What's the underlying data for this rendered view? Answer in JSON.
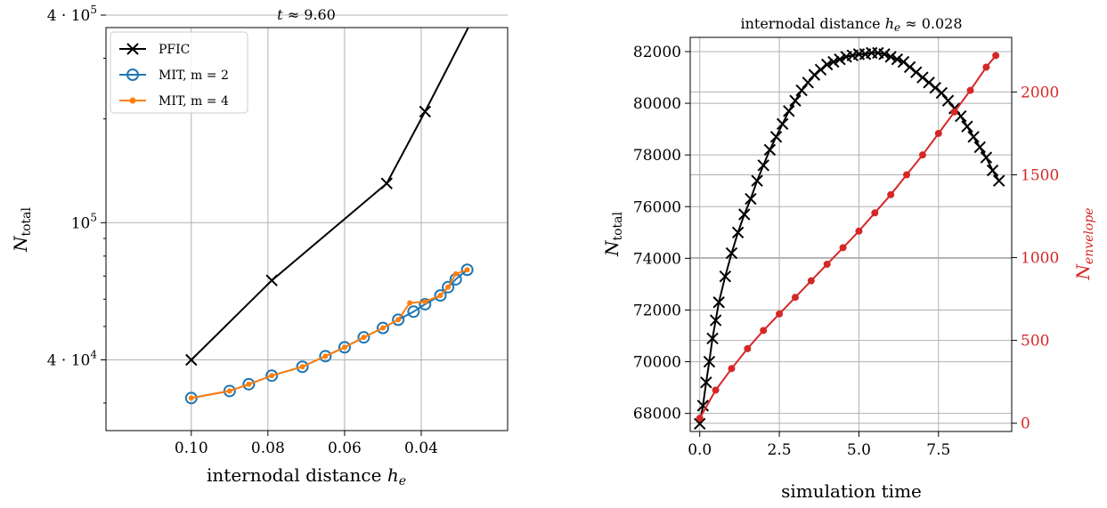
{
  "chart_data": [
    {
      "type": "line",
      "title": "t ≈ 9.60",
      "xlabel": "internodal distance h_e",
      "ylabel": "N_total",
      "x_axis": "reversed",
      "y_scale": "log",
      "grid": true,
      "legend_placement": "top-left",
      "xticks": [
        "0.10",
        "0.08",
        "0.06",
        "0.04"
      ],
      "yticks": [
        "4 · 10^4",
        "10^5",
        "4 · 10^5"
      ],
      "series": [
        {
          "name": "PFIC",
          "marker": "x",
          "color": "#000000",
          "x": [
            0.1,
            0.079,
            0.049,
            0.039,
            0.022
          ],
          "y": [
            40000,
            68000,
            130000,
            210000,
            490000
          ]
        },
        {
          "name": "MIT, m = 2",
          "marker": "o",
          "color": "#1f77b4",
          "x": [
            0.1,
            0.09,
            0.085,
            0.079,
            0.071,
            0.065,
            0.06,
            0.055,
            0.05,
            0.046,
            0.042,
            0.039,
            0.035,
            0.033,
            0.031,
            0.028
          ],
          "y": [
            31000,
            32500,
            34000,
            36000,
            38200,
            41000,
            43500,
            46500,
            49500,
            52300,
            55200,
            58000,
            61500,
            65000,
            68500,
            73000
          ]
        },
        {
          "name": "MIT, m = 4",
          "marker": ".",
          "color": "#ff7f0e",
          "x": [
            0.1,
            0.09,
            0.085,
            0.079,
            0.071,
            0.065,
            0.06,
            0.055,
            0.05,
            0.046,
            0.043,
            0.039,
            0.035,
            0.033,
            0.031,
            0.028
          ],
          "y": [
            31000,
            32500,
            34000,
            36000,
            38200,
            41000,
            43500,
            46500,
            49500,
            52300,
            58500,
            59000,
            61500,
            65000,
            71000,
            73000
          ]
        }
      ]
    },
    {
      "type": "line",
      "title": "internodal distance h_e ≈ 0.028",
      "xlabel": "simulation time",
      "ylabel": "N_total",
      "ylabel_right": "N_envelope",
      "grid": true,
      "xlim": [
        -0.3,
        9.8
      ],
      "ylim": [
        67300,
        82550
      ],
      "ylim_right": [
        -50,
        2330
      ],
      "xticks": [
        "0.0",
        "2.5",
        "5.0",
        "7.5"
      ],
      "yticks": [
        "68000",
        "70000",
        "72000",
        "74000",
        "76000",
        "78000",
        "80000",
        "82000"
      ],
      "yticks_right": [
        "0",
        "500",
        "1000",
        "1500",
        "2000"
      ],
      "series": [
        {
          "axis": "left",
          "marker": "x",
          "color": "#000000",
          "x": [
            0.0,
            0.1,
            0.2,
            0.3,
            0.4,
            0.5,
            0.6,
            0.8,
            1.0,
            1.2,
            1.4,
            1.6,
            1.8,
            2.0,
            2.2,
            2.4,
            2.6,
            2.8,
            3.0,
            3.2,
            3.4,
            3.6,
            3.8,
            4.0,
            4.2,
            4.4,
            4.6,
            4.8,
            5.0,
            5.2,
            5.4,
            5.6,
            5.8,
            6.0,
            6.2,
            6.4,
            6.6,
            6.8,
            7.0,
            7.2,
            7.4,
            7.6,
            7.8,
            8.0,
            8.2,
            8.4,
            8.6,
            8.8,
            9.0,
            9.2,
            9.4
          ],
          "y": [
            67600,
            68300,
            69200,
            70000,
            70900,
            71600,
            72300,
            73300,
            74200,
            75000,
            75700,
            76300,
            77000,
            77600,
            78200,
            78700,
            79200,
            79700,
            80100,
            80500,
            80800,
            81100,
            81300,
            81500,
            81600,
            81700,
            81800,
            81850,
            81900,
            81900,
            81950,
            81950,
            81900,
            81800,
            81700,
            81600,
            81400,
            81200,
            81000,
            80800,
            80600,
            80400,
            80100,
            79800,
            79500,
            79100,
            78700,
            78300,
            77900,
            77400,
            77000
          ]
        },
        {
          "axis": "right",
          "marker": ".",
          "color": "#d62728",
          "x": [
            0.0,
            0.5,
            1.0,
            1.5,
            2.0,
            2.5,
            3.0,
            3.5,
            4.0,
            4.5,
            5.0,
            5.5,
            6.0,
            6.5,
            7.0,
            7.5,
            8.0,
            8.5,
            9.0,
            9.3
          ],
          "y": [
            30,
            200,
            330,
            450,
            560,
            660,
            760,
            860,
            960,
            1060,
            1160,
            1270,
            1380,
            1500,
            1620,
            1750,
            1880,
            2010,
            2150,
            2220
          ]
        }
      ]
    }
  ]
}
